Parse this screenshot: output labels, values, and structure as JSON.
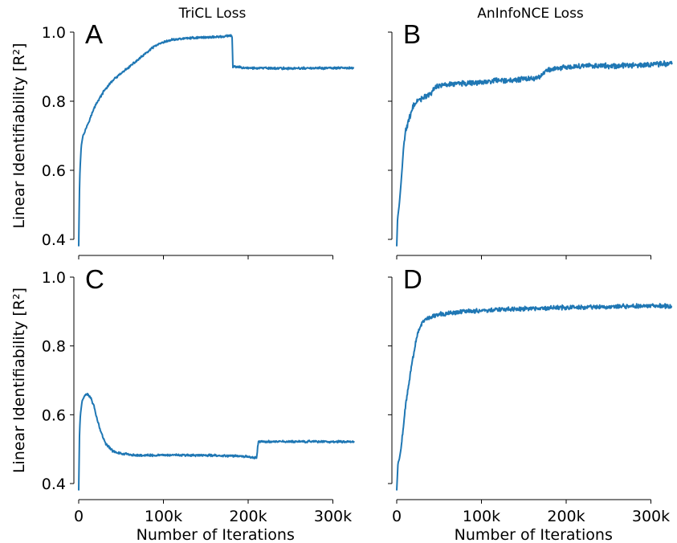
{
  "colors": {
    "series": "#1f77b4",
    "axis": "#000000"
  },
  "chart_data": [
    {
      "id": "A",
      "type": "line",
      "panel_label": "A",
      "title": "TriCL Loss",
      "ylabel": "Linear Identifiability [R²]",
      "xlabel": "",
      "xlim": [
        0,
        325000
      ],
      "ylim": [
        0.38,
        1.0
      ],
      "xticks": [
        0,
        100000,
        200000,
        300000
      ],
      "xtick_labels": [
        "",
        "",
        "",
        ""
      ],
      "yticks": [
        0.4,
        0.6,
        0.8,
        1.0
      ],
      "ytick_labels": [
        "0.4",
        "0.6",
        "0.8",
        "1.0"
      ],
      "grid": false,
      "series": [
        {
          "noise": 0.0025,
          "points": [
            [
              0,
              0.38
            ],
            [
              800,
              0.53
            ],
            [
              1500,
              0.6
            ],
            [
              3000,
              0.67
            ],
            [
              5000,
              0.7
            ],
            [
              10000,
              0.73
            ],
            [
              15000,
              0.76
            ],
            [
              20000,
              0.79
            ],
            [
              30000,
              0.83
            ],
            [
              40000,
              0.86
            ],
            [
              50000,
              0.88
            ],
            [
              60000,
              0.9
            ],
            [
              70000,
              0.92
            ],
            [
              80000,
              0.94
            ],
            [
              90000,
              0.96
            ],
            [
              100000,
              0.97
            ],
            [
              110000,
              0.978
            ],
            [
              130000,
              0.983
            ],
            [
              150000,
              0.985
            ],
            [
              170000,
              0.987
            ],
            [
              181000,
              0.99
            ],
            [
              182000,
              0.9
            ],
            [
              200000,
              0.896
            ],
            [
              250000,
              0.895
            ],
            [
              300000,
              0.896
            ],
            [
              325000,
              0.896
            ]
          ]
        }
      ]
    },
    {
      "id": "B",
      "type": "line",
      "panel_label": "B",
      "title": "AnInfoNCE Loss",
      "ylabel": "",
      "xlabel": "",
      "xlim": [
        0,
        325000
      ],
      "ylim": [
        0.38,
        1.0
      ],
      "xticks": [
        0,
        100000,
        200000,
        300000
      ],
      "xtick_labels": [
        "",
        "",
        "",
        ""
      ],
      "yticks": [
        0.4,
        0.6,
        0.8,
        1.0
      ],
      "ytick_labels": [
        "",
        "",
        "",
        ""
      ],
      "grid": false,
      "series": [
        {
          "noise": 0.006,
          "points": [
            [
              0,
              0.38
            ],
            [
              1000,
              0.46
            ],
            [
              3000,
              0.5
            ],
            [
              5000,
              0.56
            ],
            [
              8000,
              0.66
            ],
            [
              10000,
              0.71
            ],
            [
              15000,
              0.75
            ],
            [
              20000,
              0.79
            ],
            [
              25000,
              0.8
            ],
            [
              30000,
              0.81
            ],
            [
              40000,
              0.82
            ],
            [
              45000,
              0.84
            ],
            [
              50000,
              0.845
            ],
            [
              60000,
              0.85
            ],
            [
              80000,
              0.852
            ],
            [
              100000,
              0.855
            ],
            [
              120000,
              0.86
            ],
            [
              140000,
              0.862
            ],
            [
              160000,
              0.865
            ],
            [
              170000,
              0.87
            ],
            [
              175000,
              0.885
            ],
            [
              180000,
              0.89
            ],
            [
              200000,
              0.9
            ],
            [
              230000,
              0.902
            ],
            [
              260000,
              0.903
            ],
            [
              290000,
              0.905
            ],
            [
              325000,
              0.91
            ]
          ]
        }
      ]
    },
    {
      "id": "C",
      "type": "line",
      "panel_label": "C",
      "title": "",
      "ylabel": "Linear Identifiability [R²]",
      "xlabel": "Number of Iterations",
      "xlim": [
        0,
        325000
      ],
      "ylim": [
        0.38,
        1.0
      ],
      "xticks": [
        0,
        100000,
        200000,
        300000
      ],
      "xtick_labels": [
        "0",
        "100k",
        "200k",
        "300k"
      ],
      "yticks": [
        0.4,
        0.6,
        0.8,
        1.0
      ],
      "ytick_labels": [
        "0.4",
        "0.6",
        "0.8",
        "1.0"
      ],
      "grid": false,
      "series": [
        {
          "noise": 0.0025,
          "points": [
            [
              0,
              0.38
            ],
            [
              1000,
              0.55
            ],
            [
              2000,
              0.6
            ],
            [
              4000,
              0.64
            ],
            [
              7000,
              0.655
            ],
            [
              10000,
              0.66
            ],
            [
              14000,
              0.65
            ],
            [
              18000,
              0.625
            ],
            [
              22000,
              0.585
            ],
            [
              27000,
              0.545
            ],
            [
              32000,
              0.515
            ],
            [
              40000,
              0.495
            ],
            [
              50000,
              0.487
            ],
            [
              70000,
              0.482
            ],
            [
              100000,
              0.483
            ],
            [
              130000,
              0.482
            ],
            [
              160000,
              0.482
            ],
            [
              190000,
              0.48
            ],
            [
              210000,
              0.475
            ],
            [
              212000,
              0.522
            ],
            [
              250000,
              0.522
            ],
            [
              300000,
              0.522
            ],
            [
              325000,
              0.522
            ]
          ]
        }
      ]
    },
    {
      "id": "D",
      "type": "line",
      "panel_label": "D",
      "title": "",
      "ylabel": "",
      "xlabel": "Number of Iterations",
      "xlim": [
        0,
        325000
      ],
      "ylim": [
        0.38,
        1.0
      ],
      "xticks": [
        0,
        100000,
        200000,
        300000
      ],
      "xtick_labels": [
        "0",
        "100k",
        "200k",
        "300k"
      ],
      "yticks": [
        0.4,
        0.6,
        0.8,
        1.0
      ],
      "ytick_labels": [
        "",
        "",
        "",
        ""
      ],
      "grid": false,
      "series": [
        {
          "noise": 0.005,
          "points": [
            [
              0,
              0.38
            ],
            [
              1500,
              0.46
            ],
            [
              3000,
              0.47
            ],
            [
              5000,
              0.5
            ],
            [
              8000,
              0.57
            ],
            [
              10000,
              0.62
            ],
            [
              15000,
              0.7
            ],
            [
              20000,
              0.78
            ],
            [
              25000,
              0.84
            ],
            [
              30000,
              0.87
            ],
            [
              35000,
              0.88
            ],
            [
              40000,
              0.885
            ],
            [
              50000,
              0.892
            ],
            [
              70000,
              0.898
            ],
            [
              100000,
              0.903
            ],
            [
              150000,
              0.908
            ],
            [
              200000,
              0.912
            ],
            [
              250000,
              0.914
            ],
            [
              300000,
              0.916
            ],
            [
              325000,
              0.916
            ]
          ]
        }
      ]
    }
  ]
}
